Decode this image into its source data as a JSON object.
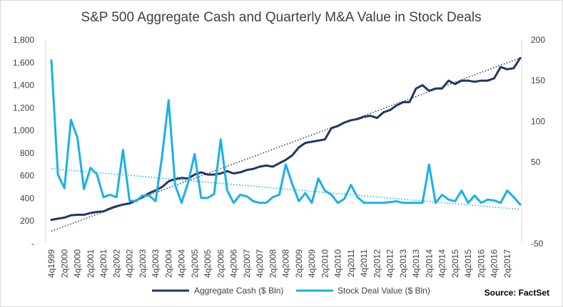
{
  "chart_data": {
    "type": "line",
    "title": "S&P 500 Aggregate Cash and Quarterly M&A Value in Stock Deals",
    "source": "Source: FactSet",
    "x_tick_labels": [
      "4q1999",
      "2q2000",
      "4q2000",
      "2q2001",
      "4q2001",
      "2q2002",
      "4q2002",
      "2q2003",
      "4q2003",
      "2q2004",
      "4q2004",
      "2q2005",
      "4q2005",
      "2q2006",
      "4q2006",
      "2q2007",
      "4q2007",
      "2q2008",
      "4q2008",
      "2q2009",
      "4q2009",
      "2q2010",
      "4q2010",
      "2q2011",
      "4q2011",
      "2q2012",
      "4q2012",
      "2q2013",
      "4q2013",
      "2q2014",
      "4q2014",
      "2q2015",
      "4q2015",
      "2q2016",
      "4q2016",
      "2q2017"
    ],
    "left_axis": {
      "ylim": [
        0,
        1800
      ],
      "tick_values": [
        0,
        200,
        400,
        600,
        800,
        1000,
        1200,
        1400,
        1600,
        1800
      ],
      "tick_labels": [
        "-",
        "200",
        "400",
        "600",
        "800",
        "1,000",
        "1,200",
        "1,400",
        "1,600",
        "1,800"
      ]
    },
    "right_axis": {
      "ylim": [
        -50,
        200
      ],
      "tick_values": [
        -50,
        0,
        50,
        100,
        150,
        200
      ],
      "tick_labels": [
        "-50",
        "",
        "50",
        "100",
        "150",
        "200"
      ]
    },
    "series": [
      {
        "name": "Aggregate Cash ($ Bln)",
        "axis": "left",
        "color": "#1f3864",
        "values": [
          210,
          220,
          230,
          250,
          255,
          255,
          270,
          280,
          285,
          310,
          330,
          345,
          355,
          380,
          410,
          445,
          470,
          500,
          550,
          570,
          580,
          575,
          610,
          630,
          610,
          610,
          620,
          640,
          620,
          630,
          650,
          660,
          680,
          690,
          680,
          710,
          740,
          780,
          850,
          890,
          900,
          910,
          920,
          1020,
          1040,
          1070,
          1090,
          1100,
          1120,
          1130,
          1110,
          1160,
          1180,
          1220,
          1250,
          1250,
          1370,
          1400,
          1350,
          1370,
          1370,
          1440,
          1410,
          1440,
          1440,
          1430,
          1440,
          1440,
          1460,
          1560,
          1540,
          1550,
          1640
        ]
      },
      {
        "name": "Stock Deal Value ($ Bln)",
        "axis": "right",
        "color": "#1ab0e8",
        "values": [
          175,
          35,
          18,
          102,
          80,
          17,
          43,
          35,
          7,
          10,
          7,
          65,
          3,
          2,
          9,
          9,
          2,
          57,
          126,
          22,
          0,
          25,
          60,
          6,
          6,
          11,
          78,
          15,
          0,
          10,
          8,
          2,
          0,
          0,
          7,
          10,
          47,
          23,
          2,
          12,
          0,
          30,
          15,
          10,
          0,
          5,
          22,
          7,
          0,
          0,
          0,
          0,
          1,
          2,
          0,
          0,
          0,
          0,
          47,
          0,
          10,
          4,
          2,
          15,
          0,
          9,
          0,
          4,
          3,
          0,
          15,
          7,
          -2
        ]
      }
    ],
    "trendlines": [
      {
        "series": "Aggregate Cash ($ Bln)",
        "style": "dotted",
        "color": "#1f3864",
        "start": 110,
        "end": 1640
      },
      {
        "series": "Stock Deal Value ($ Bln)",
        "style": "dotted",
        "color": "#1ab0e8",
        "start": 42,
        "end": -8
      }
    ],
    "legend": {
      "placement": "bottom",
      "items": [
        "Aggregate Cash ($ Bln)",
        "Stock Deal Value ($ Bln)"
      ]
    },
    "grid": false
  }
}
